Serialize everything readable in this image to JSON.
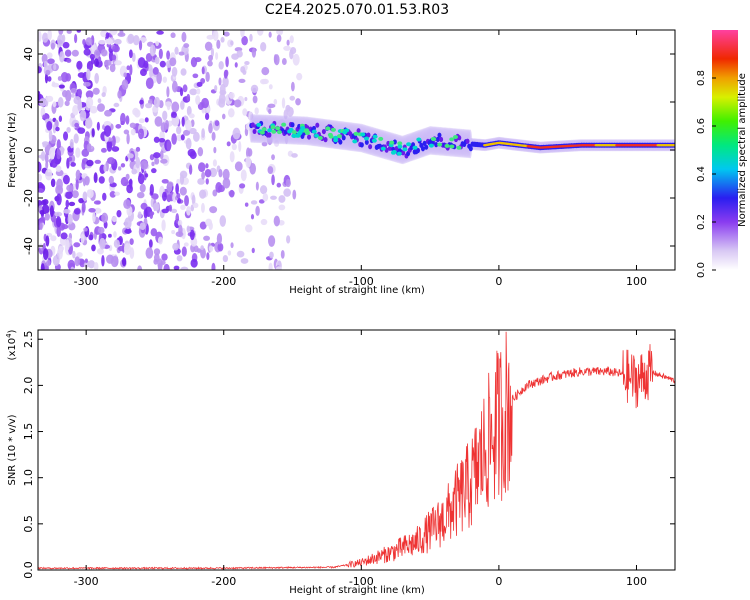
{
  "title": "C2E4.2025.070.01.53.R03",
  "chart_data": [
    {
      "type": "heatmap",
      "xlabel": "Height of straight line (km)",
      "ylabel": "Frequency (Hz)",
      "xlim": [
        -335,
        128
      ],
      "ylim": [
        -50,
        50
      ],
      "xticks": [
        -300,
        -200,
        -100,
        0,
        100
      ],
      "yticks": [
        -40,
        -20,
        0,
        20,
        40
      ],
      "colorbar": {
        "label": "Normalized spectral amplitude",
        "ticks": [
          0.0,
          0.2,
          0.4,
          0.6,
          0.8
        ],
        "range": [
          0,
          1
        ]
      },
      "features": {
        "noise_region_x": [
          -335,
          -145
        ],
        "signal_track": [
          {
            "x": -180,
            "freq": 9
          },
          {
            "x": -140,
            "freq": 8
          },
          {
            "x": -100,
            "freq": 5
          },
          {
            "x": -70,
            "freq": 0
          },
          {
            "x": -50,
            "freq": 4
          },
          {
            "x": -30,
            "freq": 3
          },
          {
            "x": -10,
            "freq": 2
          },
          {
            "x": 0,
            "freq": 3
          },
          {
            "x": 30,
            "freq": 1
          },
          {
            "x": 60,
            "freq": 2
          },
          {
            "x": 90,
            "freq": 2
          },
          {
            "x": 128,
            "freq": 2
          }
        ]
      }
    },
    {
      "type": "line",
      "xlabel": "Height of straight line (km)",
      "ylabel": "SNR (10 * v/v)",
      "yscale_label": "(x10",
      "yscale_exp": "4",
      "xlim": [
        -335,
        128
      ],
      "ylim": [
        0.0,
        2.6
      ],
      "xticks": [
        -300,
        -200,
        -100,
        0,
        100
      ],
      "yticks": [
        0.0,
        0.5,
        1.0,
        1.5,
        2.0,
        2.5
      ],
      "grid": false,
      "series": [
        {
          "color": "#ee3333",
          "x": [
            -335,
            -200,
            -120,
            -100,
            -80,
            -60,
            -40,
            -20,
            -10,
            0,
            10,
            20,
            30,
            40,
            60,
            80,
            90,
            100,
            105,
            110,
            128
          ],
          "y": [
            0.02,
            0.02,
            0.03,
            0.08,
            0.18,
            0.3,
            0.55,
            0.95,
            1.3,
            1.6,
            1.85,
            2.0,
            2.05,
            2.1,
            2.15,
            2.15,
            2.12,
            2.05,
            2.1,
            2.15,
            2.05
          ]
        }
      ]
    }
  ]
}
